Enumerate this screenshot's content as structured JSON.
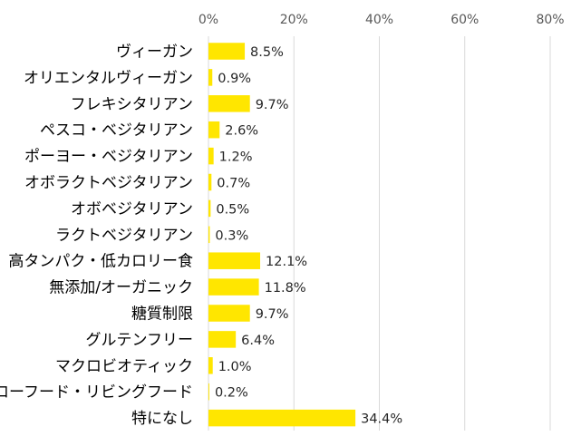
{
  "chart_data": {
    "type": "bar",
    "orientation": "horizontal",
    "title": "",
    "xlabel": "",
    "ylabel": "",
    "xlim": [
      0,
      80
    ],
    "x_ticks": [
      "0%",
      "20%",
      "40%",
      "60%",
      "80%"
    ],
    "x_tick_values": [
      0,
      20,
      40,
      60,
      80
    ],
    "axis_position": "top",
    "grid": true,
    "legend": "none",
    "bar_color": "#FFE600",
    "gridline_color": "#D9D9D9",
    "categories": [
      "ヴィーガン",
      "オリエンタルヴィーガン",
      "フレキシタリアン",
      "ペスコ・ベジタリアン",
      "ポーヨー・ベジタリアン",
      "オボラクトベジタリアン",
      "オボベジタリアン",
      "ラクトベジタリアン",
      "高タンパク・低カロリー食",
      "無添加/オーガニック",
      "糖質制限",
      "グルテンフリー",
      "マクロビオティック",
      "ローフード・リビングフード",
      "特になし"
    ],
    "values": [
      8.5,
      0.9,
      9.7,
      2.6,
      1.2,
      0.7,
      0.5,
      0.3,
      12.1,
      11.8,
      9.7,
      6.4,
      1.0,
      0.2,
      34.4
    ],
    "value_labels": [
      "8.5%",
      "0.9%",
      "9.7%",
      "2.6%",
      "1.2%",
      "0.7%",
      "0.5%",
      "0.3%",
      "12.1%",
      "11.8%",
      "9.7%",
      "6.4%",
      "1.0%",
      "0.2%",
      "34.4%"
    ]
  }
}
